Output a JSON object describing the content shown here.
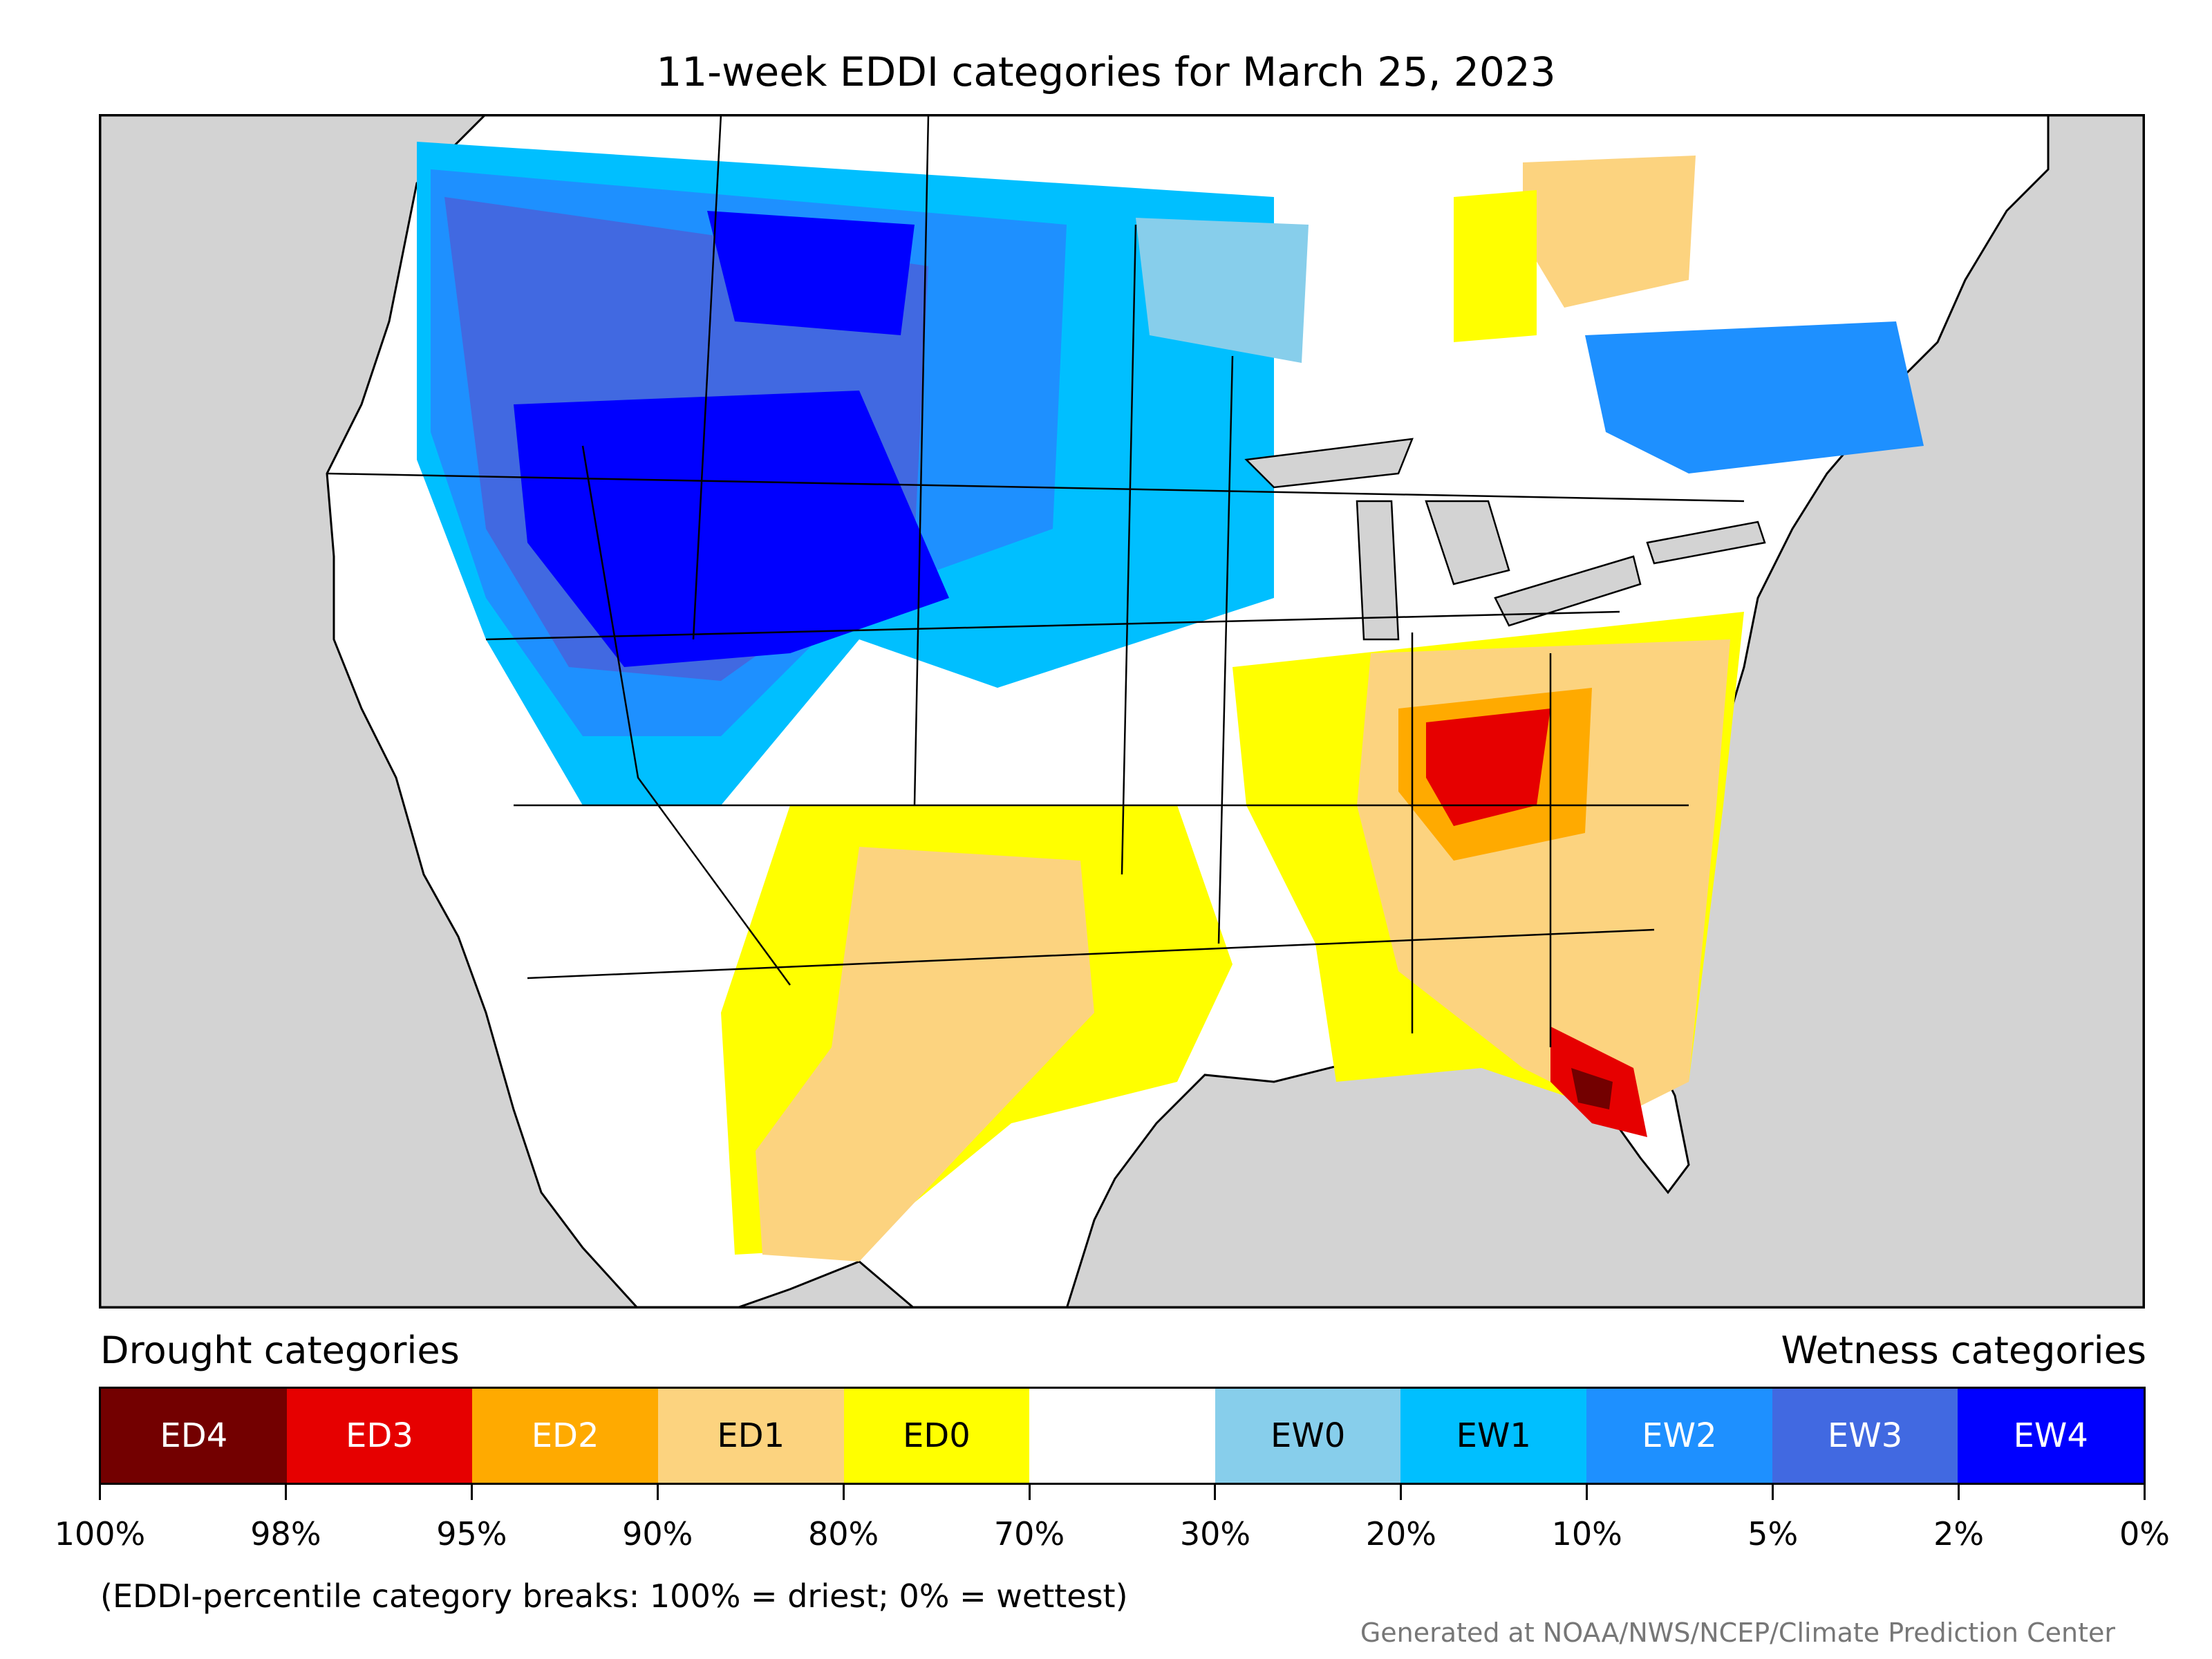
{
  "title": "11-week EDDI categories for March 25, 2023",
  "captions": {
    "drought": "Drought categories",
    "wetness": "Wetness categories"
  },
  "legend": {
    "categories": [
      {
        "label": "ED4",
        "color": "#730000",
        "text_color": "#ffffff"
      },
      {
        "label": "ED3",
        "color": "#e60000",
        "text_color": "#ffffff"
      },
      {
        "label": "ED2",
        "color": "#ffaa00",
        "text_color": "#ffffff"
      },
      {
        "label": "ED1",
        "color": "#fcd37f",
        "text_color": "#000000"
      },
      {
        "label": "ED0",
        "color": "#ffff00",
        "text_color": "#000000"
      },
      {
        "label": "",
        "color": "#ffffff",
        "text_color": "#000000"
      },
      {
        "label": "EW0",
        "color": "#87ceeb",
        "text_color": "#000000"
      },
      {
        "label": "EW1",
        "color": "#00bfff",
        "text_color": "#000000"
      },
      {
        "label": "EW2",
        "color": "#1e90ff",
        "text_color": "#ffffff"
      },
      {
        "label": "EW3",
        "color": "#4169e1",
        "text_color": "#ffffff"
      },
      {
        "label": "EW4",
        "color": "#0000ff",
        "text_color": "#ffffff"
      }
    ],
    "ticks": [
      "100%",
      "98%",
      "95%",
      "90%",
      "80%",
      "70%",
      "30%",
      "20%",
      "10%",
      "5%",
      "2%",
      "0%"
    ]
  },
  "note": "(EDDI-percentile category breaks: 100% = driest; 0% = wettest)",
  "credit": "Generated at NOAA/NWS/NCEP/Climate Prediction Center",
  "map": {
    "background_color": "#d3d3d3",
    "land_color": "#ffffff"
  }
}
